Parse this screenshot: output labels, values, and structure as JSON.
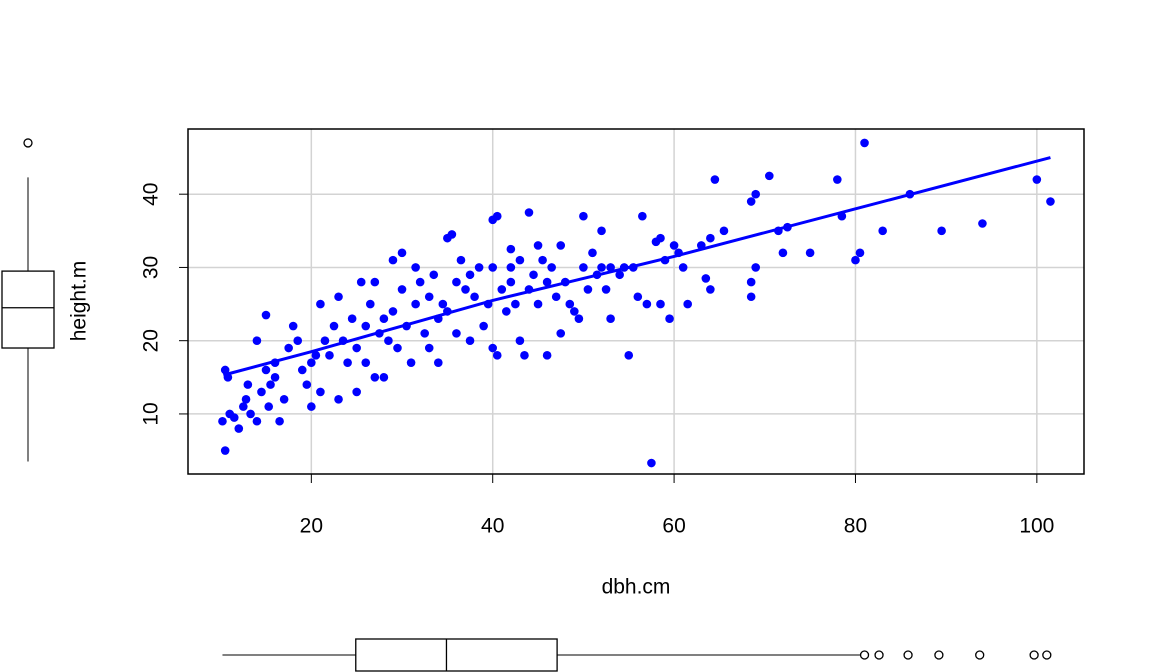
{
  "chart_data": {
    "type": "scatter",
    "x_label": "dbh.cm",
    "y_label": "height.m",
    "color": "#0000ff",
    "grid": true,
    "xlim": [
      6.4,
      105.2
    ],
    "ylim": [
      1.8,
      48.9
    ],
    "xticks": [
      20,
      40,
      60,
      80,
      100
    ],
    "yticks": [
      10,
      20,
      30,
      40
    ],
    "x": [
      10.2,
      10.5,
      10.8,
      10.5,
      11,
      11.5,
      12,
      12.5,
      12.8,
      13,
      13.3,
      14,
      14,
      14.5,
      15,
      15,
      15.3,
      15.5,
      16,
      16,
      16.5,
      17,
      17.5,
      18,
      18.5,
      19,
      19.5,
      20,
      20,
      20.5,
      21,
      21,
      21.5,
      22,
      22.5,
      23,
      23,
      23.5,
      24,
      24.5,
      25,
      25,
      25.5,
      26,
      26,
      26.5,
      27,
      27,
      27.5,
      28,
      28,
      28.5,
      29,
      29,
      29.5,
      30,
      30,
      30.5,
      31,
      31.5,
      31.5,
      32,
      32.5,
      33,
      33,
      33.5,
      34,
      34,
      34.5,
      35,
      35,
      35.5,
      36,
      36,
      36.5,
      37,
      37.5,
      37.5,
      38,
      38.5,
      39,
      39.5,
      40,
      40,
      40,
      40.5,
      40.5,
      41,
      41.5,
      42,
      42,
      42,
      42.5,
      43,
      43,
      43.5,
      44,
      44,
      44.5,
      45,
      45,
      45.5,
      46,
      46,
      46.5,
      47,
      47.5,
      47.5,
      48,
      48.5,
      49,
      49.5,
      50,
      50,
      50.5,
      51,
      51.5,
      52,
      52,
      52.5,
      53,
      53,
      54,
      54.5,
      55,
      55.5,
      56,
      56.5,
      57,
      57.5,
      58,
      58.5,
      58.5,
      59,
      59.5,
      60,
      60.5,
      61,
      61.5,
      63,
      63.5,
      64,
      64,
      64.5,
      65.5,
      68.5,
      68.5,
      68.5,
      69,
      69,
      70.5,
      71.5,
      72,
      72.5,
      75,
      78,
      78.5,
      80,
      80.5,
      81,
      83,
      86,
      89.5,
      94,
      100,
      101.5
    ],
    "y": [
      9,
      16,
      15,
      5,
      10,
      9.5,
      8,
      11,
      12,
      14,
      10,
      9,
      20,
      13,
      23.5,
      16,
      11,
      14,
      17,
      15,
      9,
      12,
      19,
      22,
      20,
      16,
      14,
      11,
      17,
      18,
      25,
      13,
      20,
      18,
      22,
      26,
      12,
      20,
      17,
      23,
      13,
      19,
      28,
      22,
      17,
      25,
      28,
      15,
      21,
      23,
      15,
      20,
      31,
      24,
      19,
      32,
      27,
      22,
      17,
      30,
      25,
      28,
      21,
      26,
      19,
      29,
      17,
      23,
      25,
      34,
      24,
      34.5,
      28,
      21,
      31,
      27,
      29,
      20,
      26,
      30,
      22,
      25,
      36.5,
      19,
      30,
      37,
      18,
      27,
      24,
      32.5,
      28,
      30,
      25,
      20,
      31,
      18,
      37.5,
      27,
      29,
      25,
      33,
      31,
      18,
      28,
      30,
      26,
      33,
      21,
      28,
      25,
      24,
      23,
      37,
      30,
      27,
      32,
      29,
      30,
      35,
      27,
      23,
      30,
      29,
      30,
      18,
      30,
      26,
      37,
      25,
      3.3,
      33.5,
      25,
      34,
      31,
      23,
      33,
      32,
      30,
      25,
      33,
      28.5,
      34,
      27,
      42,
      35,
      26,
      39,
      28,
      40,
      30,
      42.5,
      35,
      32,
      35.5,
      32,
      42,
      37,
      31,
      32,
      47,
      35,
      40,
      35,
      36,
      42,
      39
    ],
    "fit": {
      "x": [
        10.3,
        20,
        30,
        40,
        50,
        60,
        80,
        101.5
      ],
      "y": [
        15.3,
        18.5,
        22,
        25.5,
        28.5,
        31.5,
        38,
        45
      ]
    },
    "x_boxplot": {
      "whisker_low": 10.2,
      "q1": 24.9,
      "median": 34.9,
      "q3": 47.1,
      "whisker_high": 80.5,
      "outliers": [
        81,
        82.6,
        85.8,
        89.2,
        93.7,
        99.7,
        101.1
      ]
    },
    "y_boxplot": {
      "whisker_low": 3.5,
      "q1": 19,
      "median": 24.5,
      "q3": 29.5,
      "whisker_high": 42.3,
      "outliers": [
        47
      ]
    }
  }
}
